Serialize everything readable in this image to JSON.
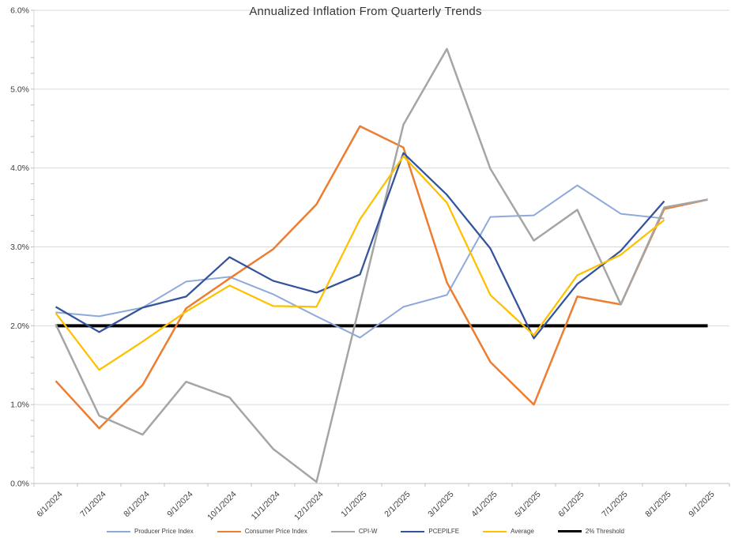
{
  "title": "Annualized Inflation From Quarterly Trends",
  "axis": {
    "yticks_labels": [
      "0.0%",
      "1.0%",
      "2.0%",
      "3.0%",
      "4.0%",
      "5.0%",
      "6.0%"
    ],
    "y_minor_step_pct": 0.2,
    "grid_color": "#d9d9d9",
    "axis_color": "#bfbfbf",
    "tick_label_color": "#404040"
  },
  "chart_data": {
    "type": "line",
    "title": "Annualized Inflation From Quarterly Trends",
    "xlabel": "",
    "ylabel": "",
    "ylim": [
      0,
      6
    ],
    "ytick_step": 1.0,
    "grid": "horizontal-major",
    "legend_position": "bottom",
    "categories": [
      "6/1/2024",
      "7/1/2024",
      "8/1/2024",
      "9/1/2024",
      "10/1/2024",
      "11/1/2024",
      "12/1/2024",
      "1/1/2025",
      "2/1/2025",
      "3/1/2025",
      "4/1/2025",
      "5/1/2025",
      "6/1/2025",
      "7/1/2025",
      "8/1/2025",
      "9/1/2025"
    ],
    "units": "percent",
    "series": [
      {
        "name": "Producer Price Index",
        "color": "#8ea9db",
        "width": 2,
        "values": [
          2.17,
          2.12,
          2.23,
          2.56,
          2.62,
          2.4,
          2.12,
          1.85,
          2.24,
          2.39,
          3.38,
          3.4,
          3.78,
          3.42,
          3.36,
          null
        ]
      },
      {
        "name": "Consumer Price Index",
        "color": "#ed7d31",
        "width": 2.5,
        "values": [
          1.3,
          0.7,
          1.25,
          2.22,
          2.6,
          2.97,
          3.54,
          4.53,
          4.26,
          2.55,
          1.54,
          1.0,
          2.37,
          2.27,
          3.48,
          3.6
        ]
      },
      {
        "name": "CPI-W",
        "color": "#a5a5a5",
        "width": 2.5,
        "values": [
          2.02,
          0.86,
          0.62,
          1.29,
          1.09,
          0.44,
          0.02,
          2.28,
          4.55,
          5.51,
          3.99,
          3.08,
          3.47,
          2.27,
          3.5,
          3.6
        ]
      },
      {
        "name": "PCEPILFE",
        "color": "#33539c",
        "width": 2.25,
        "values": [
          2.24,
          1.92,
          2.23,
          2.37,
          2.87,
          2.57,
          2.42,
          2.65,
          4.19,
          3.66,
          2.98,
          1.84,
          2.53,
          2.95,
          3.58,
          null
        ]
      },
      {
        "name": "Average",
        "color": "#ffc000",
        "width": 2.25,
        "values": [
          2.16,
          1.44,
          1.8,
          2.18,
          2.51,
          2.25,
          2.24,
          3.35,
          4.15,
          3.56,
          2.39,
          1.88,
          2.64,
          2.9,
          3.34,
          null
        ]
      },
      {
        "name": "2% Threshold",
        "color": "#000000",
        "width": 4,
        "values": [
          2.0,
          2.0,
          2.0,
          2.0,
          2.0,
          2.0,
          2.0,
          2.0,
          2.0,
          2.0,
          2.0,
          2.0,
          2.0,
          2.0,
          2.0,
          2.0
        ]
      }
    ]
  }
}
